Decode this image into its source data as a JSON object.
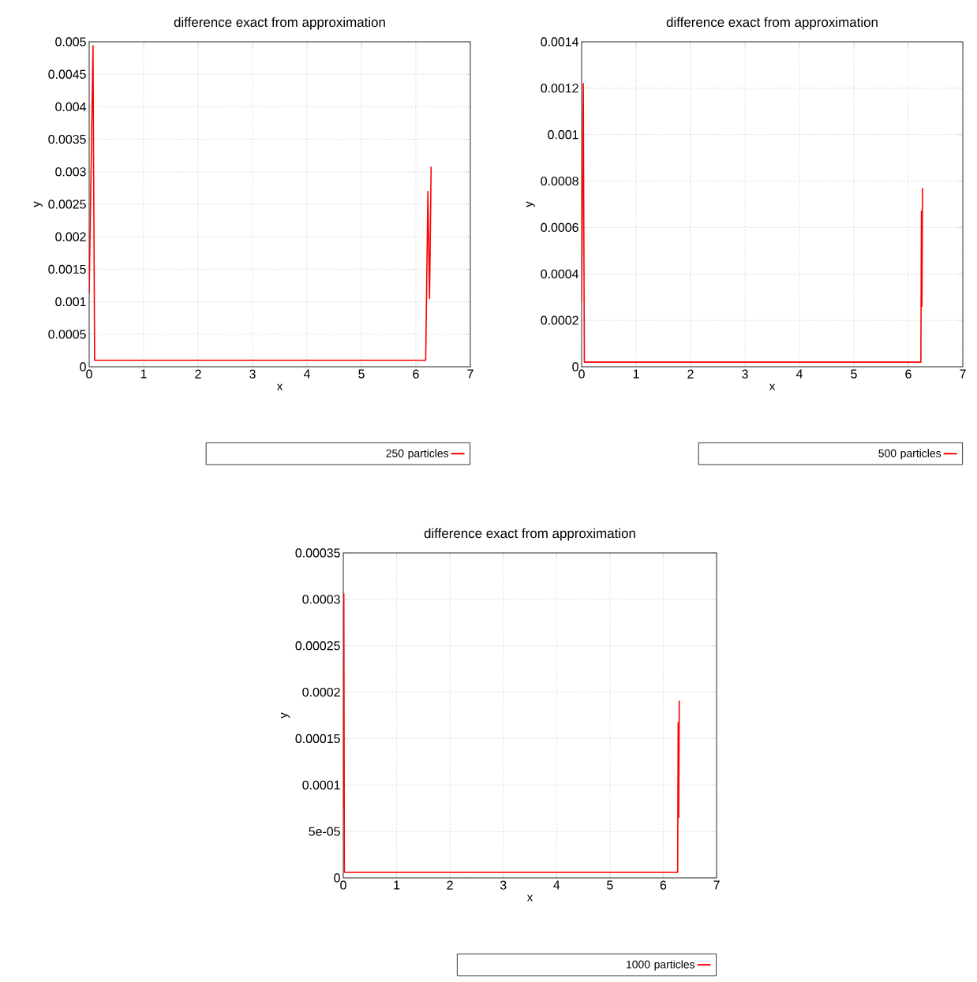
{
  "chart_data": [
    {
      "type": "line",
      "title": "difference exact from approximation",
      "xlabel": "x",
      "ylabel": "y",
      "x": [
        0,
        0.07,
        0.1,
        6.18,
        6.22,
        6.25,
        6.28
      ],
      "series": [
        {
          "name": "250 particles",
          "color": "#ff0000",
          "values": [
            0.00113,
            0.00494,
            0.0001,
            0.0001,
            0.0027,
            0.00105,
            0.00308
          ]
        }
      ],
      "xlim": [
        0,
        7
      ],
      "ylim": [
        0,
        0.005
      ],
      "xticks": [
        0,
        1,
        2,
        3,
        4,
        5,
        6,
        7
      ],
      "yticks": [
        0,
        0.0005,
        0.001,
        0.0015,
        0.002,
        0.0025,
        0.003,
        0.0035,
        0.004,
        0.0045,
        0.005
      ],
      "grid": true,
      "legend": "bottom right",
      "marker": "none"
    },
    {
      "type": "line",
      "title": "difference exact from approximation",
      "xlabel": "x",
      "ylabel": "y",
      "x": [
        0,
        0.03,
        0.05,
        6.23,
        6.24,
        6.25,
        6.26
      ],
      "series": [
        {
          "name": "500 particles",
          "color": "#ff0000",
          "values": [
            0.00028,
            0.00122,
            2e-05,
            2e-05,
            0.00067,
            0.00026,
            0.00077
          ]
        }
      ],
      "xlim": [
        0,
        7
      ],
      "ylim": [
        0,
        0.0014
      ],
      "xticks": [
        0,
        1,
        2,
        3,
        4,
        5,
        6,
        7
      ],
      "yticks": [
        0,
        0.0002,
        0.0004,
        0.0006,
        0.0008,
        0.001,
        0.0012,
        0.0014
      ],
      "grid": true,
      "legend": "bottom right",
      "marker": "none"
    },
    {
      "type": "line",
      "title": "difference exact from approximation",
      "xlabel": "x",
      "ylabel": "y",
      "x": [
        0,
        0.01,
        0.02,
        6.27,
        6.28,
        6.29,
        6.3
      ],
      "series": [
        {
          "name": "1000 particles",
          "color": "#ff0000",
          "values": [
            7.6e-05,
            0.000306,
            6e-06,
            6e-06,
            0.000167,
            6.5e-05,
            0.000191
          ]
        }
      ],
      "xlim": [
        0,
        7
      ],
      "ylim": [
        0,
        0.00035
      ],
      "xticks": [
        0,
        1,
        2,
        3,
        4,
        5,
        6,
        7
      ],
      "yticks": [
        0,
        {
          "value": 5e-05,
          "label": "5e-05"
        },
        0.0001,
        0.00015,
        0.0002,
        0.00025,
        0.0003,
        0.00035
      ],
      "grid": true,
      "legend": "bottom right",
      "marker": "none"
    }
  ]
}
